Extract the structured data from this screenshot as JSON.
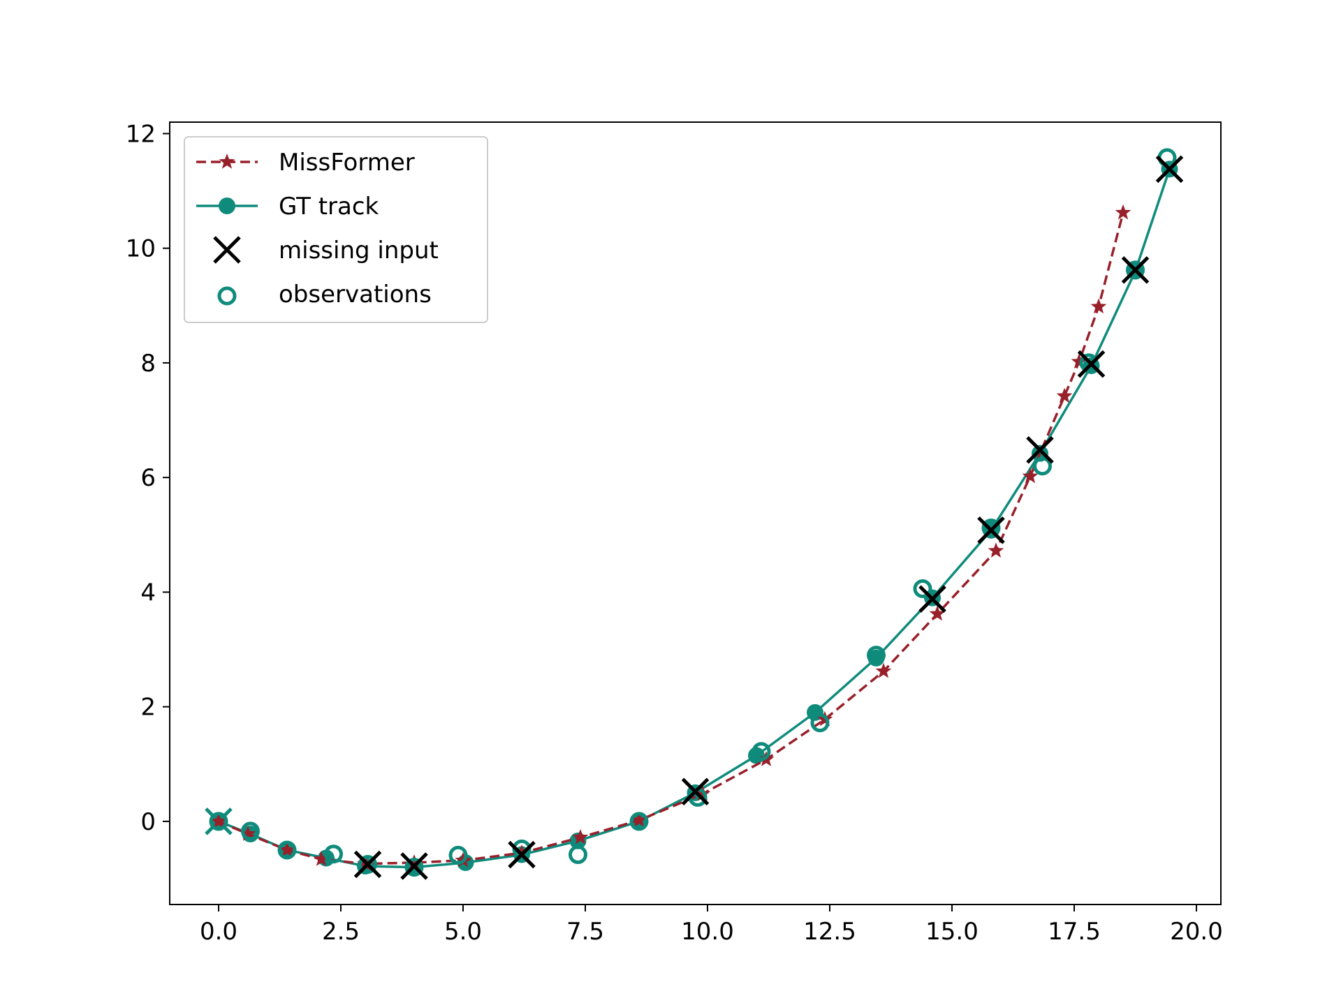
{
  "chart_data": {
    "type": "line",
    "title": "",
    "xlabel": "",
    "ylabel": "",
    "xlim": [
      -1.0,
      20.5
    ],
    "ylim": [
      -1.45,
      12.2
    ],
    "xticks": [
      "0.0",
      "2.5",
      "5.0",
      "7.5",
      "10.0",
      "12.5",
      "15.0",
      "17.5",
      "20.0"
    ],
    "xtick_values": [
      0,
      2.5,
      5,
      7.5,
      10,
      12.5,
      15,
      17.5,
      20
    ],
    "yticks": [
      "0",
      "2",
      "4",
      "6",
      "8",
      "10",
      "12"
    ],
    "ytick_values": [
      0,
      2,
      4,
      6,
      8,
      10,
      12
    ],
    "grid": false,
    "legend_position": "upper-left",
    "series": [
      {
        "name": "MissFormer",
        "style": "dashed-star",
        "color": "#98202a",
        "x": [
          0.0,
          0.6,
          1.4,
          2.1,
          3.0,
          4.0,
          5.0,
          6.2,
          7.4,
          8.6,
          9.9,
          11.2,
          12.4,
          13.6,
          14.7,
          15.9,
          16.6,
          17.3,
          17.6,
          18.0,
          18.5
        ],
        "y": [
          0.0,
          -0.22,
          -0.5,
          -0.66,
          -0.74,
          -0.72,
          -0.68,
          -0.55,
          -0.28,
          0.02,
          0.48,
          1.08,
          1.78,
          2.62,
          3.62,
          4.72,
          6.02,
          7.42,
          8.02,
          8.98,
          10.62
        ]
      },
      {
        "name": "GT track",
        "style": "solid-circle",
        "color": "#0f8b7c",
        "x": [
          0.0,
          0.65,
          1.4,
          2.2,
          3.0,
          4.0,
          5.05,
          6.2,
          7.35,
          8.6,
          9.75,
          11.0,
          12.2,
          13.45,
          14.6,
          15.8,
          16.8,
          17.85,
          18.75,
          19.45
        ],
        "y": [
          0.0,
          -0.22,
          -0.5,
          -0.64,
          -0.78,
          -0.8,
          -0.72,
          -0.58,
          -0.34,
          0.0,
          0.5,
          1.15,
          1.9,
          2.85,
          3.9,
          5.08,
          6.42,
          7.95,
          9.6,
          11.38
        ]
      },
      {
        "name": "missing input",
        "style": "x-marker",
        "color": "#000000",
        "x": [
          3.05,
          4.0,
          6.2,
          9.75,
          14.6,
          15.8,
          16.8,
          17.85,
          18.75,
          19.45
        ],
        "y": [
          -0.75,
          -0.78,
          -0.58,
          0.52,
          3.88,
          5.08,
          6.48,
          7.98,
          9.62,
          11.38
        ]
      },
      {
        "name": "observations",
        "style": "hollow-circle",
        "color": "#0f8b7c",
        "x": [
          0.0,
          0.65,
          1.4,
          2.35,
          3.05,
          4.0,
          4.9,
          6.2,
          7.35,
          8.6,
          9.8,
          11.1,
          12.3,
          13.45,
          14.4,
          15.8,
          16.85,
          17.8,
          18.75,
          19.4
        ],
        "y": [
          0.0,
          -0.17,
          -0.5,
          -0.57,
          -0.75,
          -0.8,
          -0.59,
          -0.48,
          -0.58,
          0.0,
          0.42,
          1.22,
          1.72,
          2.9,
          4.06,
          5.12,
          6.2,
          8.0,
          9.62,
          11.58
        ]
      }
    ],
    "extra_markers": [
      {
        "kind": "teal-x",
        "color": "#0f8b7c",
        "x": 0.0,
        "y": 0.0
      }
    ]
  }
}
